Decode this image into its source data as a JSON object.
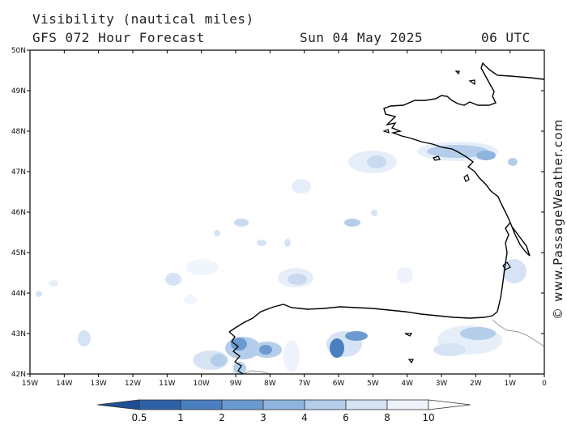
{
  "header": {
    "title": "Visibility (nautical miles)",
    "model": "GFS 072 Hour Forecast",
    "date": "Sun 04 May 2025",
    "time": "06 UTC"
  },
  "map": {
    "lon_range": [
      -15,
      0
    ],
    "lat_range": [
      42,
      50
    ],
    "x_ticks": [
      "15W",
      "14W",
      "13W",
      "12W",
      "11W",
      "10W",
      "9W",
      "8W",
      "7W",
      "6W",
      "5W",
      "4W",
      "3W",
      "2W",
      "1W",
      "0"
    ],
    "y_ticks": [
      "42N",
      "43N",
      "44N",
      "45N",
      "46N",
      "47N",
      "48N",
      "49N",
      "50N"
    ],
    "land_color": "#ffffff",
    "coast_color": "#000000",
    "border_color": "#999999"
  },
  "legend": {
    "labels": [
      "0.5",
      "1",
      "2",
      "3",
      "4",
      "6",
      "8",
      "10"
    ],
    "colors": [
      "#2e62a6",
      "#4a7fc0",
      "#6b9ad0",
      "#8fb4de",
      "#b4cdea",
      "#d6e3f4",
      "#eef3fb"
    ]
  },
  "credit": "© www.PassageWeather.com"
}
